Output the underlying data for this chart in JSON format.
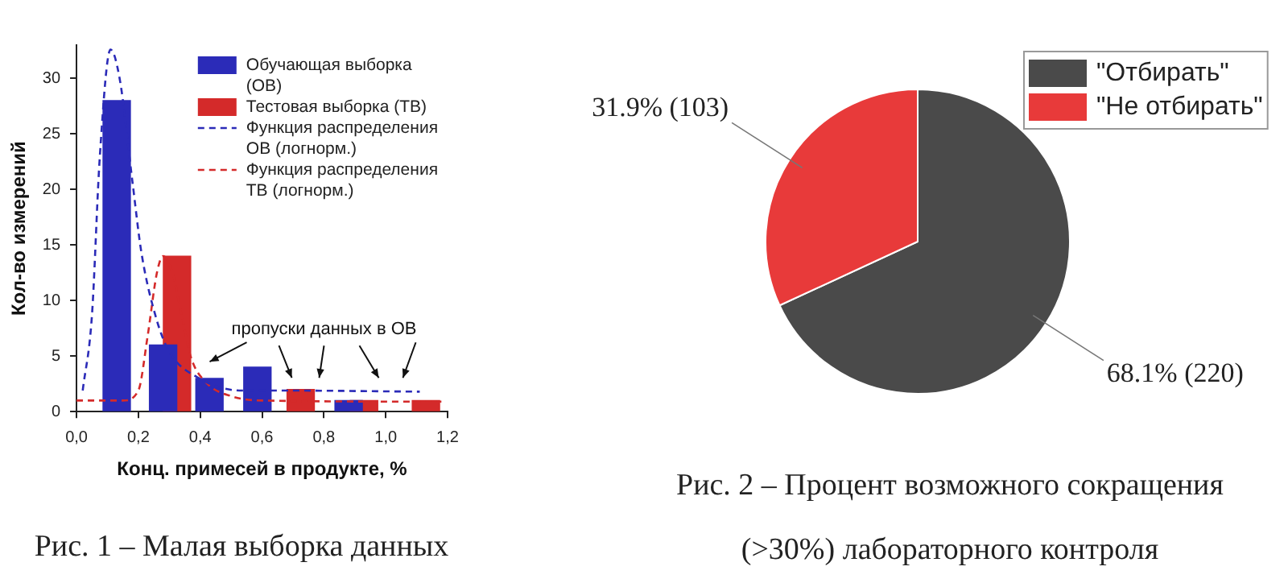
{
  "chart_data": [
    {
      "type": "bar",
      "xlabel": "Конц. примесей в продукте, %",
      "ylabel": "Кол-во измерений",
      "xlim": [
        0,
        1.2
      ],
      "xticks": [
        {
          "value": 0,
          "label": "0,0"
        },
        {
          "value": 0.2,
          "label": "0,2"
        },
        {
          "value": 0.4,
          "label": "0,4"
        },
        {
          "value": 0.6,
          "label": "0,6"
        },
        {
          "value": 0.8,
          "label": "0,8"
        },
        {
          "value": 1.0,
          "label": "1,0"
        },
        {
          "value": 1.2,
          "label": "1,2"
        }
      ],
      "ylim": [
        0,
        33
      ],
      "yticks": [
        0,
        5,
        10,
        15,
        20,
        25,
        30
      ],
      "grid": false,
      "legend": "top right",
      "marker": "none",
      "series": [
        {
          "name": "Обучающая выборка (ОВ)",
          "type": "bar",
          "color": "#2b2bb8",
          "x": [
            0.13,
            0.28,
            0.43,
            0.585,
            0.88
          ],
          "values": [
            28,
            6,
            3,
            4,
            1
          ]
        },
        {
          "name": "Тестовая выборка (ТВ)",
          "type": "bar",
          "color": "#d42a2a",
          "x": [
            0.325,
            0.725,
            0.93,
            1.13
          ],
          "values": [
            14,
            2,
            1,
            1
          ]
        },
        {
          "name": "Функция распределения ОВ (логнорм.)",
          "type": "line",
          "line_style": "dashed",
          "color": "#2b2bb8",
          "x": [
            0.02,
            0.05,
            0.075,
            0.11,
            0.14,
            0.18,
            0.21,
            0.26,
            0.3,
            0.39,
            0.535,
            0.66,
            1.11
          ],
          "values": [
            1.9,
            8.7,
            22.8,
            32.6,
            29.9,
            20.9,
            14.3,
            8.2,
            5.4,
            3.1,
            1.9,
            1.9,
            1.8
          ]
        },
        {
          "name": "Функция распределения ТВ (логнорм.)",
          "type": "line",
          "line_style": "dashed",
          "color": "#d42a2a",
          "x": [
            0,
            0.15,
            0.2,
            0.23,
            0.26,
            0.28,
            0.31,
            0.34,
            0.37,
            0.42,
            0.5,
            0.6,
            1.18
          ],
          "values": [
            1,
            1,
            1.9,
            6.8,
            12.5,
            14,
            12.5,
            8.7,
            4.9,
            2.6,
            1.4,
            1,
            0.9
          ]
        }
      ],
      "annotations": [
        "пропуски данных в ОВ",
        "Рис. 1 – Малая выборка данных"
      ]
    },
    {
      "type": "pie",
      "categories": [
        "\"Отбирать\"",
        "\"Не отбирать\""
      ],
      "values": [
        220,
        103
      ],
      "colors": [
        "#4a4a4a",
        "#e83a3a"
      ],
      "value_labels": [
        "68.1% (220)",
        "31.9% (103)"
      ],
      "legend": "top right",
      "annotations": [
        "Рис. 2 – Процент возможного сокращения (>30%) лабораторного контроля"
      ]
    }
  ]
}
